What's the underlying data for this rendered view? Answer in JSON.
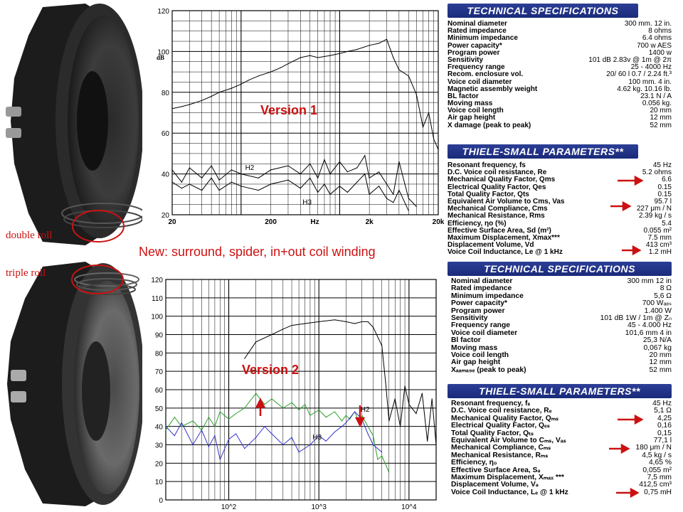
{
  "annotations": {
    "double_roll": "double roll",
    "triple_roll": "triple roll",
    "new_note": "New: surround, spider, in+out coil winding",
    "version1": "Version 1",
    "version2": "Version 2"
  },
  "colors": {
    "red": "#cc1111",
    "header_blue": "#1f3088",
    "green_series": "#2aa02a",
    "blue_series": "#3333cc"
  },
  "chart_data": [
    {
      "type": "line",
      "ylabel": "dB",
      "xscale": "log",
      "xlim": [
        20,
        10000
      ],
      "ylim": [
        20,
        120
      ],
      "x_tick_labels": [
        "20",
        "200",
        "Hz",
        "2k",
        "20k"
      ],
      "y_tick_labels": [
        "120",
        "100",
        "80",
        "60",
        "40",
        "20"
      ],
      "grid": true,
      "series": [
        {
          "x": [
            20,
            25,
            30,
            40,
            50,
            60,
            80,
            100,
            120,
            150,
            200,
            250,
            300,
            400,
            500,
            600,
            800,
            1000,
            1200,
            1500,
            2000,
            2500,
            3000,
            3500,
            4000,
            5000,
            6000,
            7000,
            8000,
            9000,
            10000
          ],
          "y": [
            72,
            73,
            74,
            76,
            78,
            80,
            82,
            84,
            86,
            88,
            90,
            92,
            94,
            97,
            98,
            97,
            98,
            99,
            100,
            101,
            103,
            104,
            106,
            97,
            91,
            88,
            79,
            63,
            70,
            57,
            52
          ]
        },
        {
          "name": "H2",
          "x": [
            20,
            25,
            30,
            40,
            50,
            60,
            80,
            100,
            150,
            200,
            300,
            400,
            500,
            600,
            700,
            800,
            1000,
            1200,
            1500,
            1800,
            2000,
            2500,
            3000,
            3500,
            4000,
            5000,
            6000
          ],
          "y": [
            42,
            36,
            43,
            38,
            44,
            37,
            42,
            40,
            38,
            42,
            44,
            40,
            45,
            38,
            47,
            40,
            46,
            41,
            43,
            49,
            38,
            41,
            35,
            30,
            46,
            28,
            24
          ]
        },
        {
          "name": "H3",
          "x": [
            20,
            25,
            30,
            40,
            50,
            60,
            80,
            100,
            150,
            200,
            300,
            400,
            500,
            600,
            700,
            800,
            1000,
            1200,
            1500,
            1800,
            2000,
            2500,
            3000,
            3500,
            4000,
            5000
          ],
          "y": [
            36,
            33,
            35,
            32,
            38,
            32,
            36,
            34,
            32,
            35,
            37,
            33,
            38,
            31,
            35,
            30,
            34,
            31,
            36,
            40,
            30,
            34,
            28,
            26,
            32,
            22
          ]
        }
      ]
    },
    {
      "type": "line",
      "xscale": "log",
      "xlim": [
        20,
        20000
      ],
      "ylim": [
        0,
        120
      ],
      "x_tick_labels": [
        "10^2",
        "10^3",
        "10^4"
      ],
      "y_tick_labels": [
        "120",
        "110",
        "100",
        "90",
        "80",
        "70",
        "60",
        "50",
        "40",
        "30",
        "20",
        "10",
        "0"
      ],
      "grid": true,
      "series": [
        {
          "x": [
            150,
            200,
            300,
            400,
            500,
            700,
            1000,
            1500,
            2000,
            2500,
            3000,
            3500,
            4000,
            5000,
            5500,
            6000,
            7000,
            8000,
            9000,
            10000,
            12000,
            14000,
            16000,
            18000,
            20000
          ],
          "y": [
            77,
            86,
            90,
            93,
            95,
            96,
            97,
            98,
            97,
            96,
            97,
            97,
            94,
            84,
            64,
            43,
            55,
            40,
            62,
            52,
            47,
            58,
            32,
            55,
            30
          ]
        },
        {
          "name": "H2",
          "x": [
            20,
            25,
            30,
            40,
            50,
            60,
            70,
            80,
            100,
            120,
            150,
            200,
            250,
            300,
            400,
            500,
            600,
            700,
            800,
            1000,
            1200,
            1500,
            1800,
            2000,
            2200,
            2500,
            2800,
            3000,
            3500,
            4000,
            4500,
            5000,
            6000
          ],
          "y": [
            38,
            45,
            40,
            43,
            38,
            45,
            40,
            48,
            44,
            47,
            50,
            58,
            52,
            55,
            50,
            53,
            49,
            52,
            46,
            49,
            45,
            48,
            43,
            46,
            44,
            48,
            42,
            46,
            40,
            35,
            22,
            24,
            15
          ]
        },
        {
          "name": "H3",
          "x": [
            20,
            25,
            30,
            40,
            50,
            60,
            70,
            80,
            100,
            120,
            150,
            200,
            250,
            300,
            400,
            500,
            600,
            800,
            1000,
            1200,
            1500,
            1800,
            2000,
            2500,
            3000,
            3500,
            4000,
            5000
          ],
          "y": [
            40,
            35,
            42,
            30,
            38,
            29,
            35,
            22,
            33,
            36,
            28,
            34,
            40,
            36,
            30,
            34,
            26,
            30,
            35,
            32,
            37,
            40,
            42,
            48,
            44,
            36,
            30,
            26
          ]
        }
      ]
    }
  ],
  "tech_specs_1": {
    "title": "TECHNICAL SPECIFICATIONS",
    "rows": [
      [
        "Nominal diameter",
        "300 mm.  12 in."
      ],
      [
        "Rated impedance",
        "8 ohms"
      ],
      [
        "Minimum impedance",
        "6.4 ohms"
      ],
      [
        "Power capacity*",
        "700 w AES"
      ],
      [
        "Program power",
        "1400 w"
      ],
      [
        "Sensitivity",
        "101 dB  2.83v @ 1m @ 2π"
      ],
      [
        "Frequency range",
        "25 - 4000 Hz"
      ],
      [
        "Recom. enclosure vol.",
        "20/ 60 l  0.7 / 2.24 ft.³"
      ],
      [
        "Voice coil diameter",
        "100 mm.  4 in."
      ],
      [
        "Magnetic assembly weight",
        "4.62 kg.  10.16 lb."
      ],
      [
        "BL factor",
        "23.1 N / A"
      ],
      [
        "Moving mass",
        "0.056 kg."
      ],
      [
        "Voice coil length",
        "20 mm"
      ],
      [
        "Air gap height",
        "12 mm"
      ],
      [
        "X damage (peak to peak)",
        "52 mm"
      ]
    ]
  },
  "ts_params_1": {
    "title": "THIELE-SMALL PARAMETERS**",
    "rows": [
      [
        "Resonant frequency, fs",
        "45 Hz"
      ],
      [
        "D.C. Voice coil resistance, Re",
        "5.2 ohms"
      ],
      [
        "Mechanical Quality Factor, Qms",
        "6.6"
      ],
      [
        "Electrical Quality Factor, Qes",
        "0.15"
      ],
      [
        "Total Quality Factor, Qts",
        "0.15"
      ],
      [
        "Equivalent Air Volume to Cms, Vas",
        "95.7 l"
      ],
      [
        "Mechanical Compliance, Cms",
        "227 μm / N"
      ],
      [
        "Mechanical Resistance, Rms",
        "2.39 kg / s"
      ],
      [
        "Efficiency, ηo (%)",
        "5.4"
      ],
      [
        "Effective Surface Area, Sd (m²)",
        "0.055 m²"
      ],
      [
        "Maximum Displacement, Xmax***",
        "7.5 mm"
      ],
      [
        "Displacement Volume, Vd",
        "413 cm³"
      ],
      [
        "Voice Coil Inductance, Le @ 1 kHz",
        "1.2 mH"
      ]
    ]
  },
  "tech_specs_2": {
    "title": "TECHNICAL SPECIFICATIONS",
    "rows": [
      [
        "Nominal diameter",
        "300 mm    12 in"
      ],
      [
        "Rated impedance",
        "8 Ω"
      ],
      [
        "Minimum impedance",
        "5,6 Ω"
      ],
      [
        "Power capacity*",
        "700 Wₐₑₛ"
      ],
      [
        "Program power",
        "1.400 W"
      ],
      [
        "Sensitivity",
        "101 dB    1W / 1m @ Zₙ"
      ],
      [
        "Frequency range",
        "45 - 4.000 Hz"
      ],
      [
        "Voice coil diameter",
        "101,6 mm    4 in"
      ],
      [
        "Bl factor",
        "25,3 N/A"
      ],
      [
        "Moving mass",
        "0,067 kg"
      ],
      [
        "Voice coil length",
        "20 mm"
      ],
      [
        "Air gap height",
        "12 mm"
      ],
      [
        "Xₐₐₘₐ₉ₑ (peak to peak)",
        "52 mm"
      ]
    ]
  },
  "ts_params_2": {
    "title": "THIELE-SMALL PARAMETERS**",
    "rows": [
      [
        "Resonant frequency, fₛ",
        "45 Hz"
      ],
      [
        "D.C. Voice coil resistance, Rₑ",
        "5,1 Ω"
      ],
      [
        "Mechanical Quality Factor, Qₘₛ",
        "4,25"
      ],
      [
        "Electrical Quality Factor, Qₑₛ",
        "0,16"
      ],
      [
        "Total Quality Factor, Qₜₛ",
        "0,15"
      ],
      [
        "Equivalent Air Volume to Cₘₛ, Vₐₛ",
        "77,1 l"
      ],
      [
        "Mechanical Compliance, Cₘₛ",
        "180 μm / N"
      ],
      [
        "Mechanical Resistance, Rₘₛ",
        "4,5 kg / s"
      ],
      [
        "Efficiency, η₀",
        "4,65 %"
      ],
      [
        "Effective Surface Area, Sₔ",
        "0,055 m²"
      ],
      [
        "Maximum Displacement, Xₘₐₓ ***",
        "7,5 mm"
      ],
      [
        "Displacement Volume, Vₔ",
        "412,5 cm³"
      ],
      [
        "Voice Coil Inductance, Lₑ @ 1 kHz",
        "0,75 mH"
      ]
    ]
  }
}
